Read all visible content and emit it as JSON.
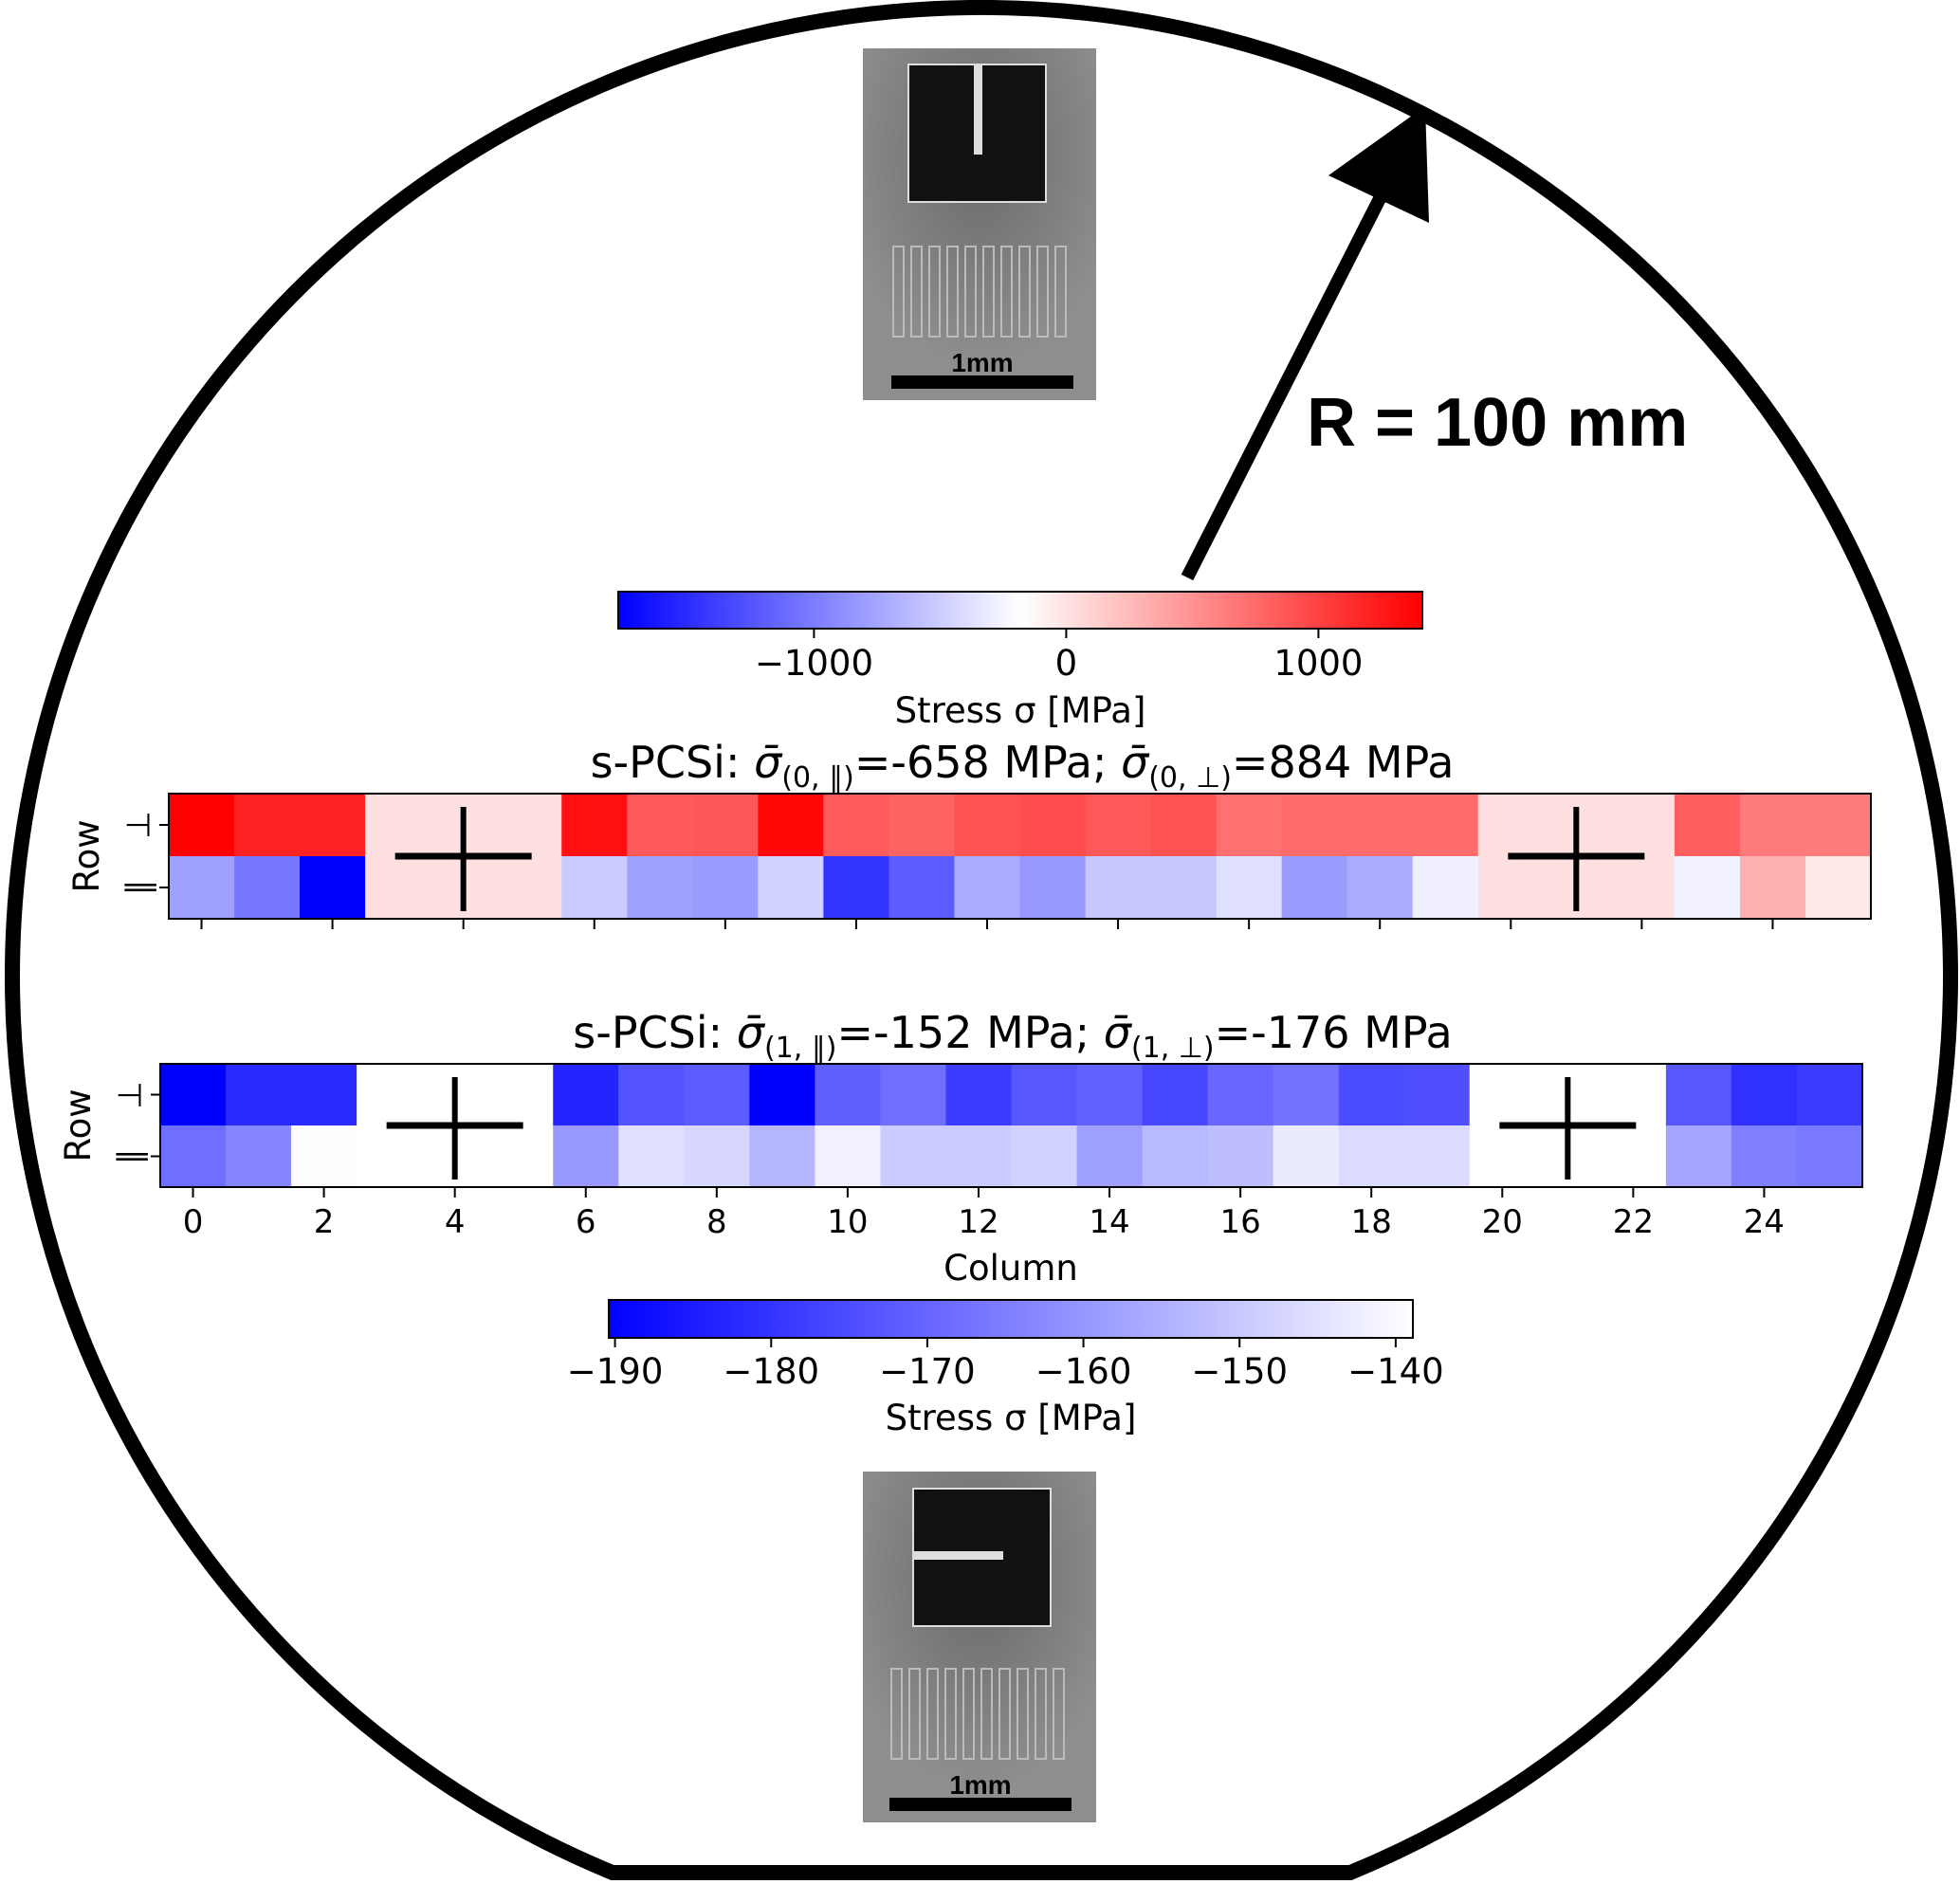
{
  "radius_label": "R = 100 mm",
  "sem_top": {
    "scale_label": "1mm",
    "orientation": "vertical"
  },
  "sem_bottom": {
    "scale_label": "1mm",
    "orientation": "horizontal"
  },
  "colorbar_top": {
    "label": "Stress σ [MPa]",
    "range": [
      -1776,
      1412
    ],
    "ticks": [
      -1000,
      0,
      1000
    ],
    "tick_labels": [
      "−1000",
      "0",
      "1000"
    ],
    "colormap": "bwr"
  },
  "colorbar_bottom": {
    "label": "Stress σ [MPa]",
    "range": [
      -190.4,
      -138.9
    ],
    "ticks": [
      -190,
      -180,
      -170,
      -160,
      -150,
      -140
    ],
    "tick_labels": [
      "−190",
      "−180",
      "−170",
      "−160",
      "−150",
      "−140"
    ],
    "colormap": "blue-white"
  },
  "row_axis": {
    "label": "Row",
    "row_labels": [
      "⊥",
      "∥"
    ]
  },
  "column_axis": {
    "label": "Column",
    "ticks": [
      0,
      2,
      4,
      6,
      8,
      10,
      12,
      14,
      16,
      18,
      20,
      22,
      24
    ],
    "tick_labels": [
      "0",
      "2",
      "4",
      "6",
      "8",
      "10",
      "12",
      "14",
      "16",
      "18",
      "20",
      "22",
      "24"
    ]
  },
  "chart_data": [
    {
      "type": "heatmap",
      "title": {
        "prefix": "s-PCSi: ",
        "symbol": "σ̄",
        "sub1": "(0, ∥)",
        "val1": "=-658 MPa; ",
        "sub2": "(0, ⊥)",
        "val2": "=884 MPa"
      },
      "columns": 26,
      "rows": [
        "⊥",
        "∥"
      ],
      "masked_columns": [
        3,
        4,
        5,
        20,
        21,
        22
      ],
      "mask_color": "#ffe0e0",
      "values": [
        [
          1410,
          1200,
          1195,
          null,
          null,
          null,
          1310,
          850,
          870,
          1360,
          845,
          785,
          900,
          940,
          860,
          900,
          715,
          745,
          745,
          740,
          null,
          null,
          null,
          820,
          650,
          635
        ],
        [
          -775,
          -1030,
          -1780,
          null,
          null,
          null,
          -505,
          -775,
          -800,
          -455,
          -1460,
          -1205,
          -710,
          -825,
          -530,
          -530,
          -380,
          -800,
          -695,
          -280,
          null,
          null,
          null,
          -265,
          310,
          -40
        ]
      ]
    },
    {
      "type": "heatmap",
      "title": {
        "prefix": "s-PCSi: ",
        "symbol": "σ̄",
        "sub1": "(1, ∥)",
        "val1": "=-152 MPa; ",
        "sub2": "(1, ⊥)",
        "val2": "=-176 MPa"
      },
      "columns": 26,
      "rows": [
        "⊥",
        "∥"
      ],
      "masked_columns": [
        3,
        4,
        5,
        20,
        21,
        22
      ],
      "mask_color": "#ffffff",
      "values": [
        [
          -190.4,
          -182,
          -182,
          null,
          null,
          null,
          -183.2,
          -173.5,
          -172,
          -190.4,
          -171,
          -168,
          -178.4,
          -172.8,
          -170.7,
          -176,
          -169.5,
          -167.2,
          -175.1,
          -174.4,
          null,
          null,
          null,
          -172.8,
          -180.7,
          -178.4
        ],
        [
          -168,
          -163.3,
          -139.3,
          null,
          null,
          null,
          -159.7,
          -145.4,
          -147,
          -153.6,
          -141.9,
          -149.5,
          -149.5,
          -148,
          -158.2,
          -153,
          -152,
          -143,
          -146.2,
          -146.2,
          null,
          null,
          null,
          -157,
          -164.8,
          -166
        ]
      ]
    }
  ]
}
